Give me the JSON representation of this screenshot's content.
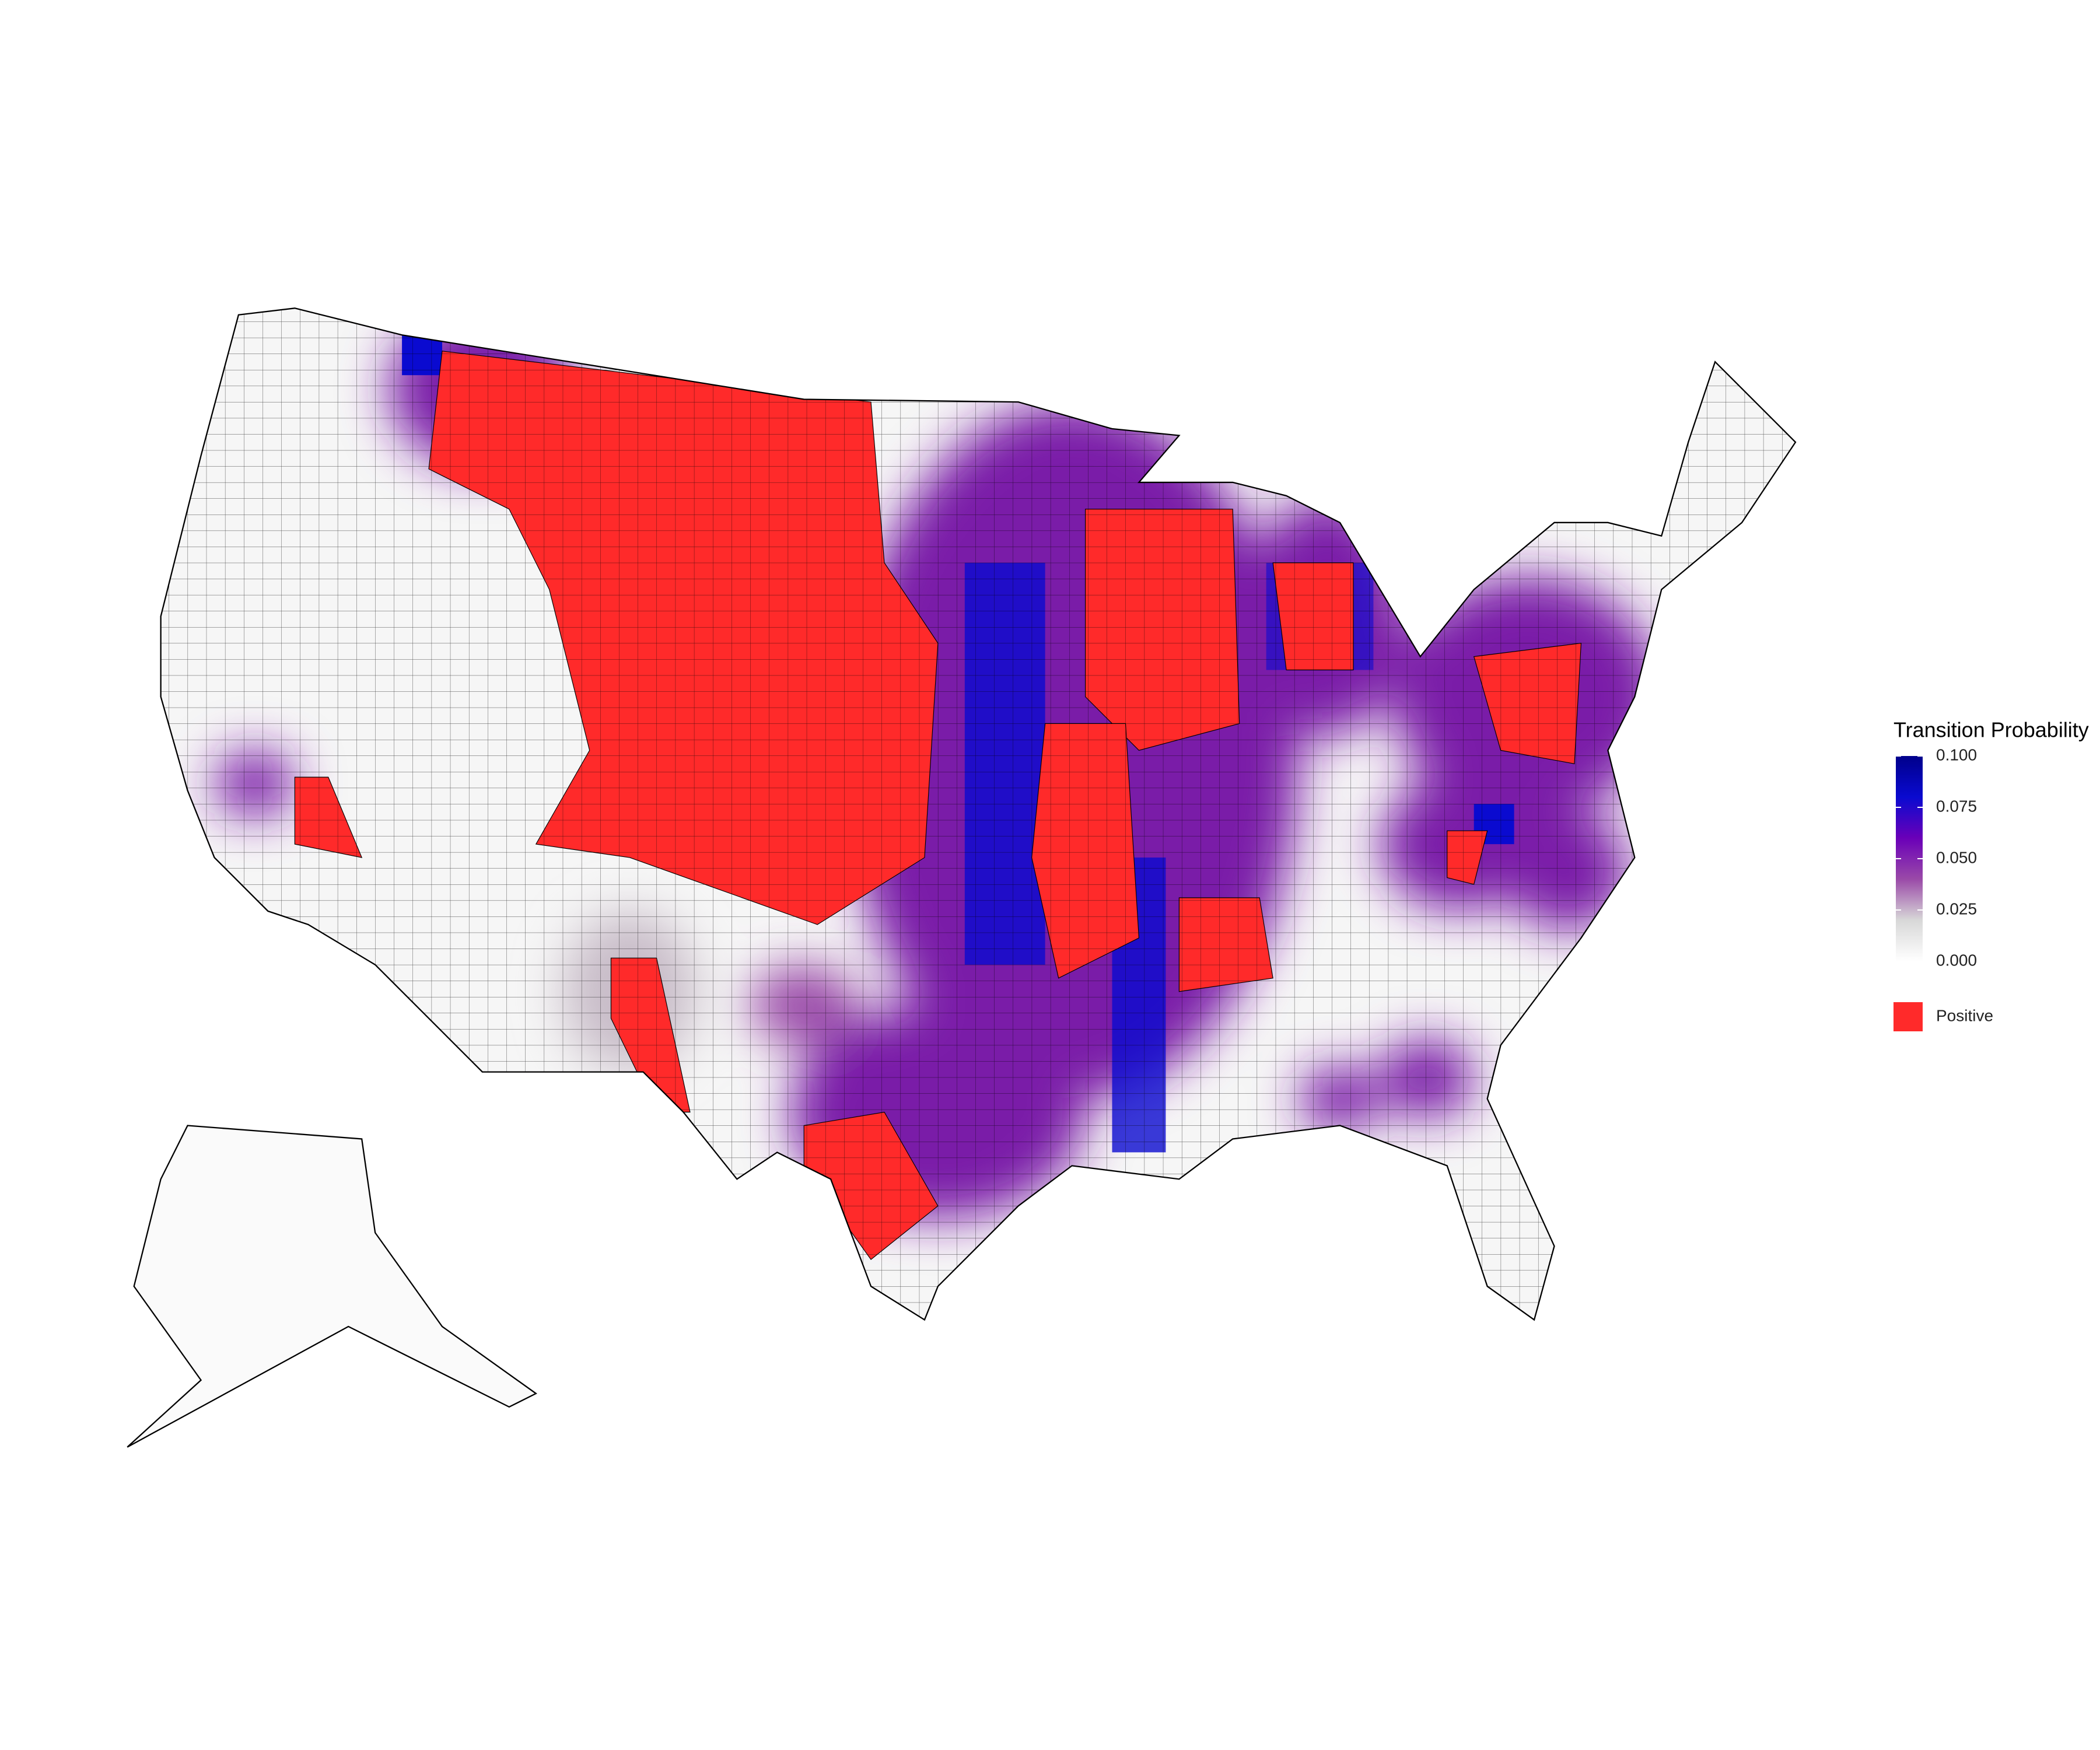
{
  "legend": {
    "title": "Transition Probability",
    "lim": [
      0,
      0.1
    ],
    "ticks": [
      {
        "value": 0,
        "label": "0.000"
      },
      {
        "value": 0.025,
        "label": "0.025"
      },
      {
        "value": 0.05,
        "label": "0.050"
      },
      {
        "value": 0.075,
        "label": "0.075"
      },
      {
        "value": 0.1,
        "label": "0.100"
      }
    ],
    "colors": [
      "#ffffff",
      "#d8d8d8",
      "#9a4aa8",
      "#6a00b8",
      "#0a0ad0",
      "#00008b"
    ],
    "positive_label": "Positive",
    "positive_color": "#ff2a2a"
  }
}
